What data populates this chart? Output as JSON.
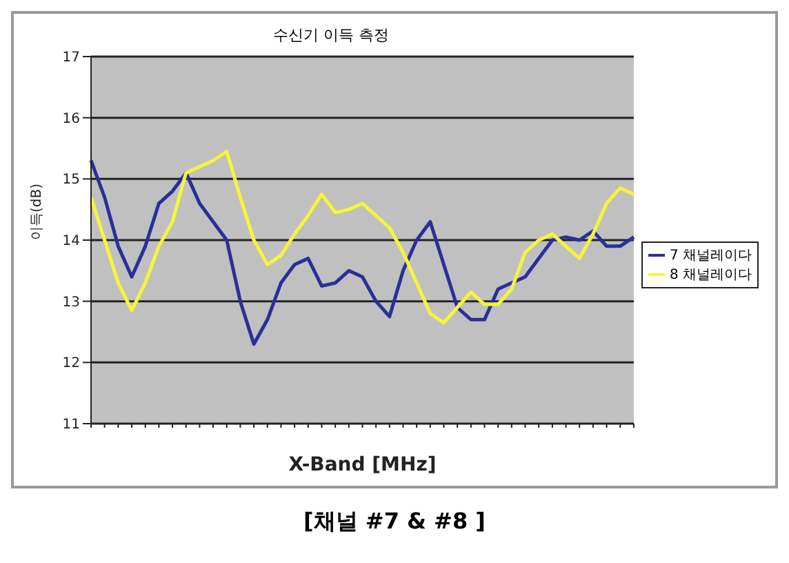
{
  "chart_data": {
    "type": "line",
    "title": "수신기 이득 측정",
    "xlabel": "X-Band [MHz]",
    "ylabel": "이득(dB)",
    "annotations": [
      "[채널 #7 & #8 ]"
    ],
    "categories": [
      null,
      null,
      null,
      null,
      null,
      null,
      null,
      null,
      null,
      null,
      null,
      null,
      null,
      null,
      null,
      null,
      null,
      null,
      null,
      null,
      null,
      null,
      null,
      null,
      null,
      null,
      null,
      null,
      null,
      null,
      null,
      null,
      null,
      null,
      null,
      null,
      null,
      null,
      null,
      null,
      null
    ],
    "series": [
      {
        "name": "7 채널레이다",
        "color": "#2b2f9a",
        "values": [
          15.3,
          14.7,
          13.9,
          13.4,
          13.9,
          14.6,
          14.8,
          15.1,
          14.6,
          14.3,
          14.0,
          13.0,
          12.3,
          12.7,
          13.3,
          13.6,
          13.7,
          13.25,
          13.3,
          13.5,
          13.4,
          13.0,
          12.75,
          13.5,
          14.0,
          14.3,
          13.6,
          12.9,
          12.7,
          12.7,
          13.2,
          13.3,
          13.4,
          13.7,
          14.0,
          14.05,
          14.0,
          14.15,
          13.9,
          13.9,
          14.05
        ]
      },
      {
        "name": "8 채널레이다",
        "color": "#f5f53a",
        "values": [
          14.7,
          14.0,
          13.3,
          12.85,
          13.3,
          13.9,
          14.3,
          15.1,
          15.2,
          15.3,
          15.45,
          14.7,
          14.0,
          13.6,
          13.75,
          14.1,
          14.4,
          14.75,
          14.45,
          14.5,
          14.6,
          14.4,
          14.2,
          13.8,
          13.3,
          12.8,
          12.65,
          12.9,
          13.15,
          12.95,
          12.95,
          13.2,
          13.8,
          14.0,
          14.1,
          13.9,
          13.7,
          14.1,
          14.6,
          14.85,
          14.75
        ]
      }
    ],
    "ylim": [
      11,
      17
    ],
    "yticks": [
      11,
      12,
      13,
      14,
      15,
      16,
      17
    ],
    "grid": "y",
    "legend": "right",
    "tick_labels": "y",
    "marker": "none",
    "line_style": "solid"
  }
}
